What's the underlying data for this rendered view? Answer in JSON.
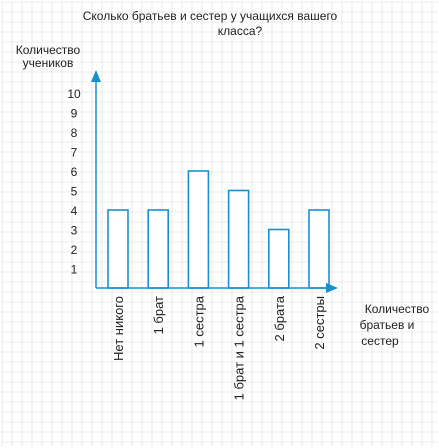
{
  "chart_data": {
    "type": "bar",
    "title_line1": "Сколько братьев и сестер у учащихся вашего",
    "title_line2": "класса?",
    "ylabel_line1": "Количество",
    "ylabel_line2": "учеников",
    "xlabel_line1": "Количество",
    "xlabel_line2": "братьев и",
    "xlabel_line3": "сестер",
    "categories": [
      "Нет никого",
      "1 брат",
      "1 сестра",
      "1 брат и 1 сестра",
      "2 брата",
      "2 сестры"
    ],
    "values": [
      4,
      4,
      6,
      5,
      3,
      4
    ],
    "yticks": [
      "1",
      "2",
      "3",
      "4",
      "5",
      "6",
      "7",
      "8",
      "9",
      "10"
    ],
    "ylim": [
      0,
      10
    ],
    "grid": true,
    "colors": {
      "bar_fill": "#ffffff",
      "bar_stroke": "#1a8fd0",
      "axis": "#1a8fd0",
      "grid": "#d9d9d9"
    }
  }
}
